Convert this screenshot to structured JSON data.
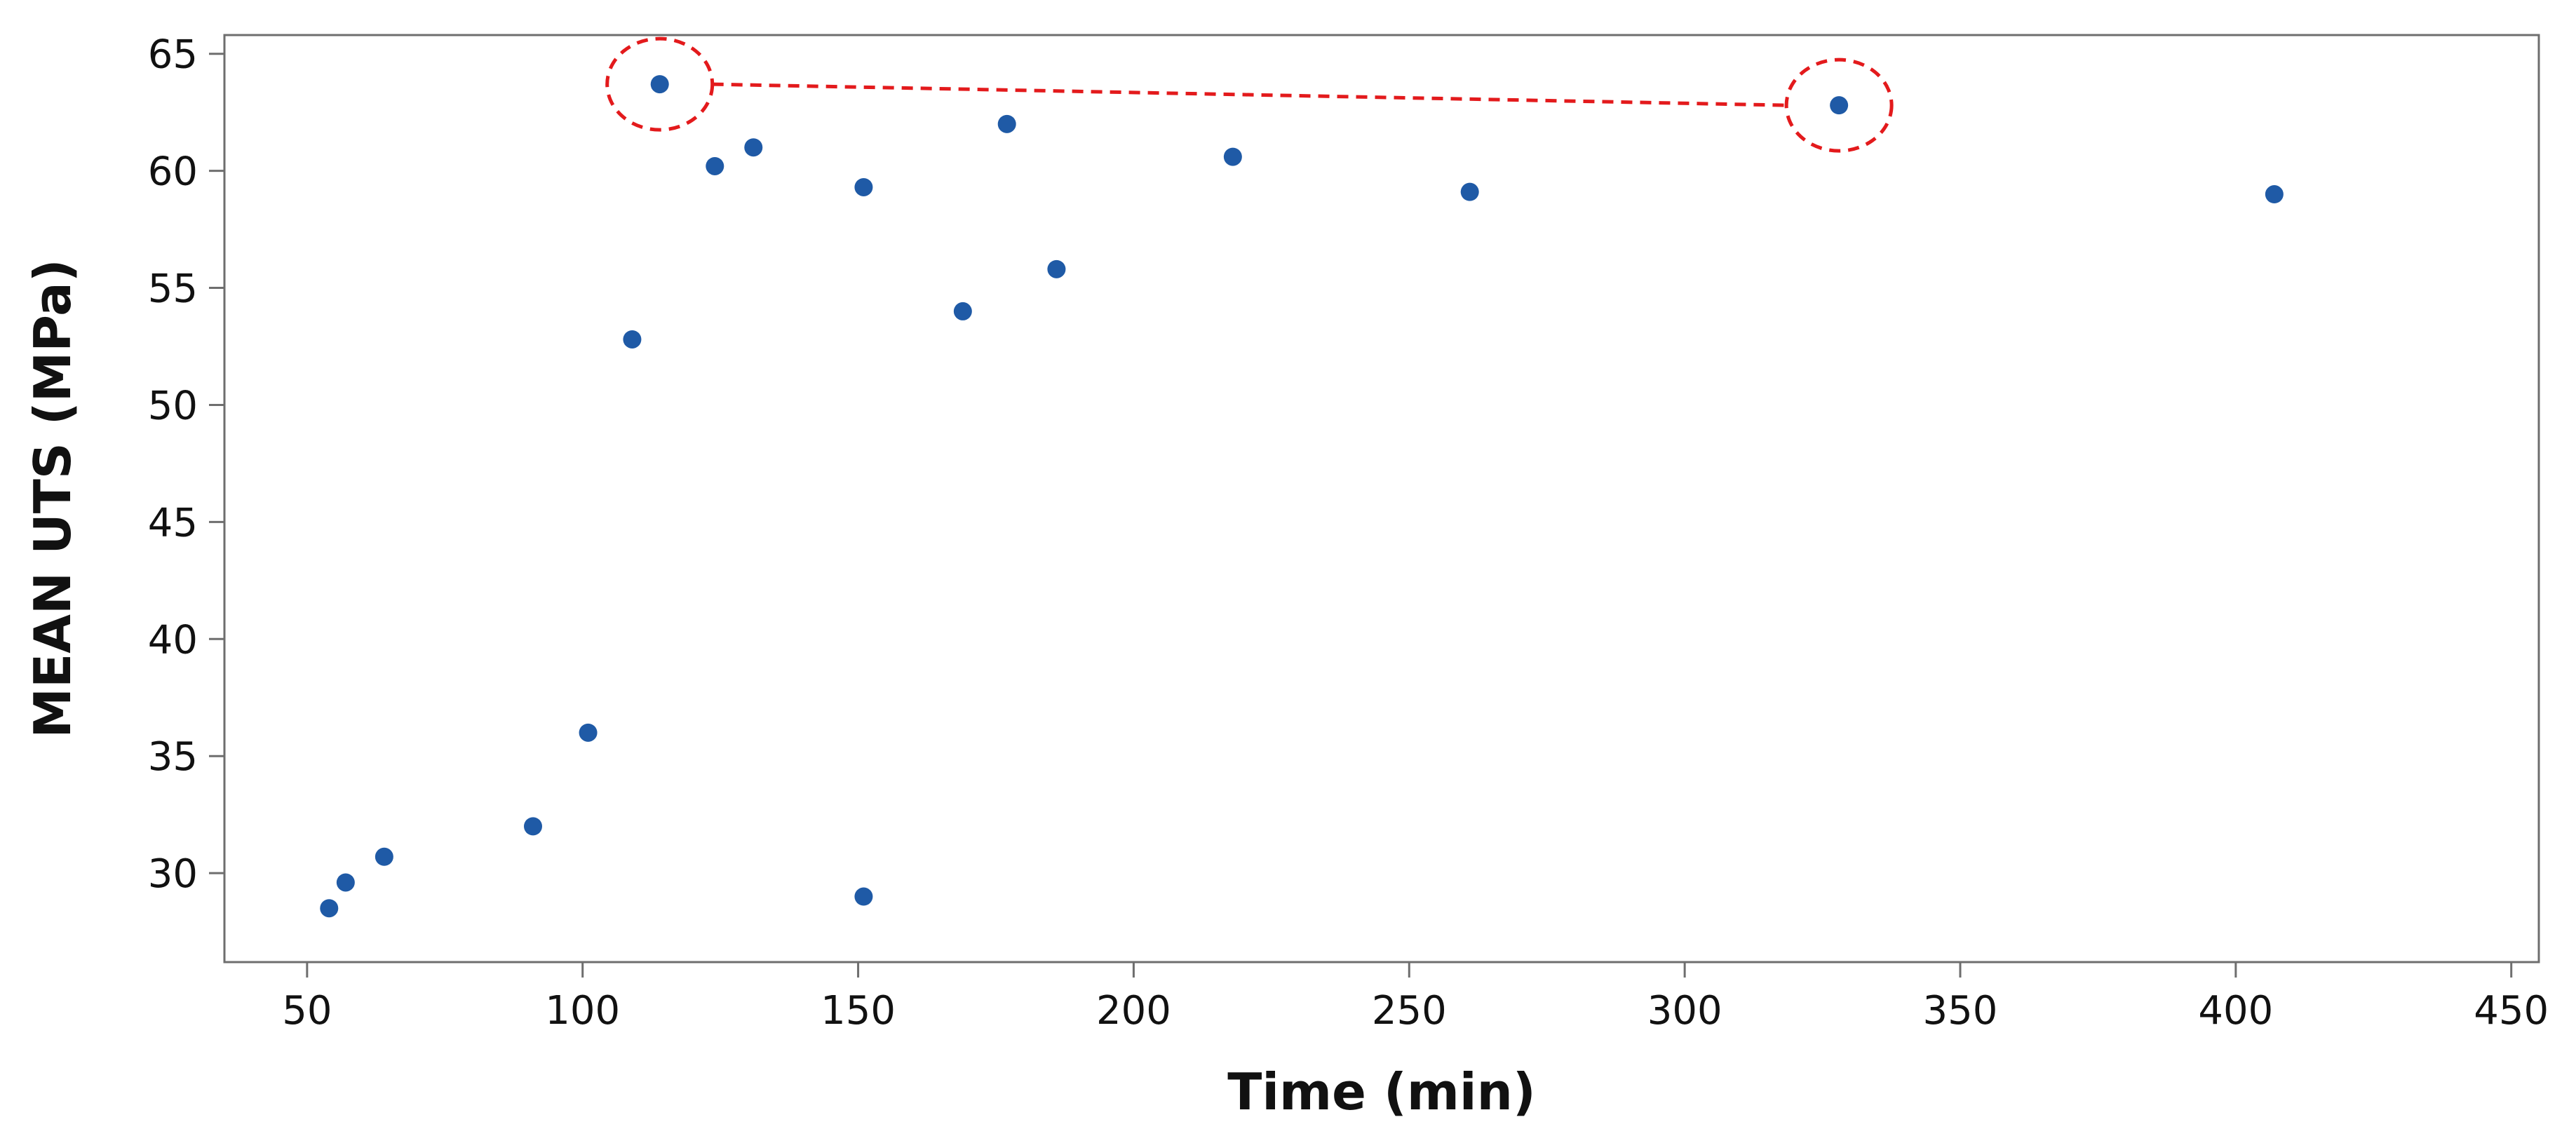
{
  "chart_data": {
    "type": "scatter",
    "title": "",
    "xlabel": "Time (min)",
    "ylabel": "MEAN UTS (MPa)",
    "xlim": [
      35,
      455
    ],
    "ylim": [
      26.2,
      65.8
    ],
    "xticks": [
      50,
      100,
      150,
      200,
      250,
      300,
      350,
      400,
      450
    ],
    "yticks": [
      30,
      35,
      40,
      45,
      50,
      55,
      60,
      65
    ],
    "grid": false,
    "legend": "none",
    "series": [
      {
        "color": "#1f5aa6",
        "x": [
          54,
          57,
          64,
          91,
          101,
          109,
          114,
          124,
          131,
          151,
          151,
          169,
          177,
          186,
          218,
          261,
          328,
          407
        ],
        "y": [
          28.5,
          29.6,
          30.7,
          32.0,
          36.0,
          52.8,
          63.7,
          60.2,
          61.0,
          59.3,
          29.0,
          54.0,
          62.0,
          55.8,
          60.6,
          59.1,
          62.8,
          59.0
        ]
      }
    ],
    "annotation": {
      "type": "dashed-connector",
      "color": "#e31a1c",
      "from": {
        "x": 114,
        "y": 63.7
      },
      "to": {
        "x": 328,
        "y": 62.8
      }
    }
  }
}
